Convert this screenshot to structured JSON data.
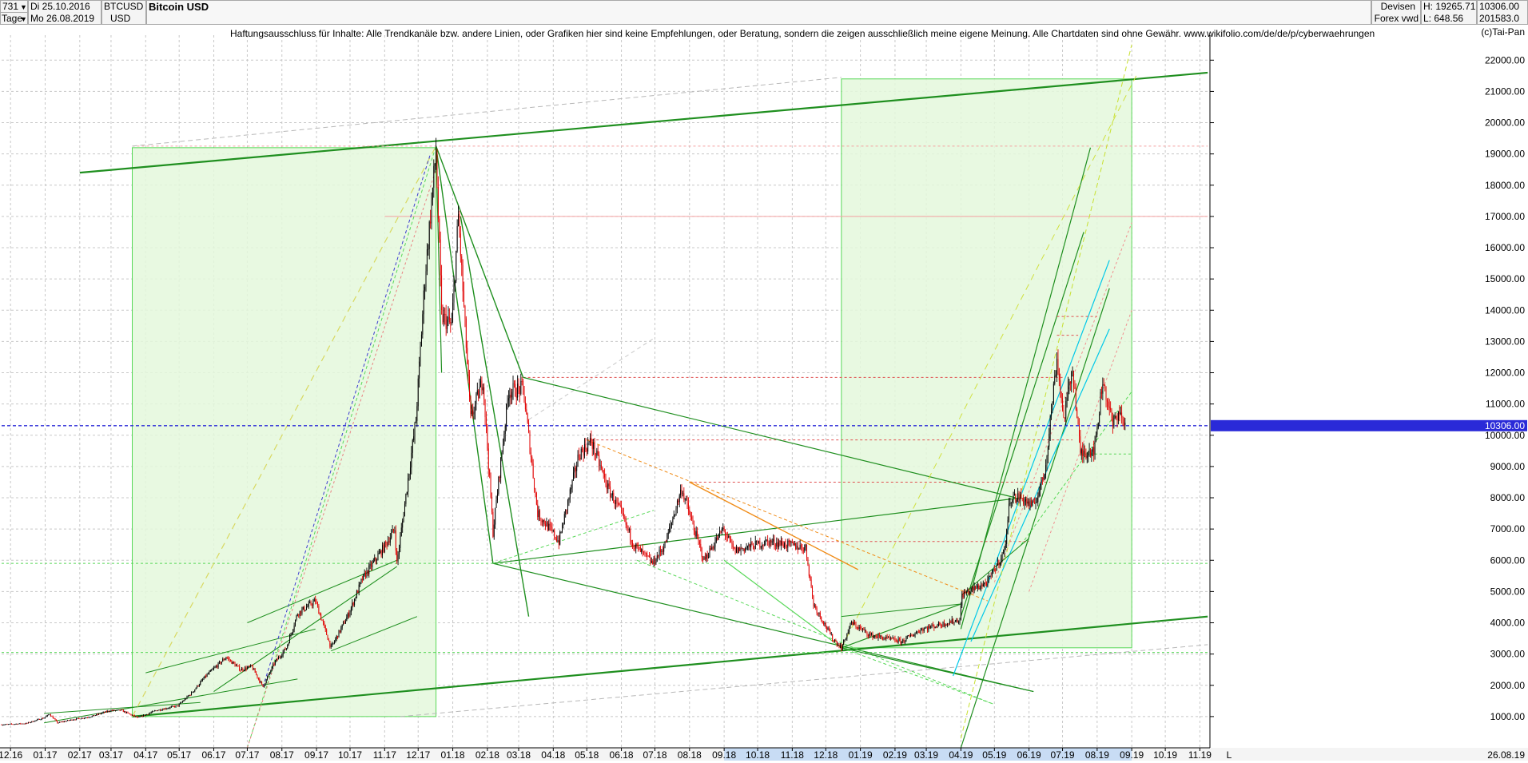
{
  "header": {
    "period_count": "731",
    "date_from": "Di 25.10.2016",
    "date_to": "Mo 26.08.2019",
    "timeframe": "Tage",
    "symbol": "BTCUSD",
    "currency": "USD",
    "title": "Bitcoin USD",
    "market": "Devisen",
    "exchange": "Forex vwd",
    "high_label": "H: 19265.71",
    "low_label": "L: 648.56",
    "last_value": "10306.00",
    "volume_value": "201583.0",
    "disclaimer": "Haftungsausschluss für Inhalte: Alle Trendkanäle bzw. andere Linien, oder Grafiken hier sind keine Empfehlungen, oder Beratung, sondern die zeigen ausschließlich meine eigene Meinung. Alle Chartdaten sind ohne Gewähr.  www.wikifolio.com/de/de/p/cyberwaehrungen",
    "copyright": "(c)Tai-Pan"
  },
  "colors": {
    "background": "#ffffff",
    "grid": "#c8c8c8",
    "bull": "#000000",
    "bear": "#e00000",
    "trend_green": "#1f8f1f",
    "light_green": "#58d858",
    "fill_green": "#e4f8dc",
    "price_line": "#2a2ad8",
    "cyan": "#00c8e8",
    "orange": "#f08c18",
    "yellow_green": "#c8e030"
  },
  "chart_data": {
    "type": "candlestick",
    "title": "Bitcoin USD",
    "symbol": "BTCUSD",
    "xlabel": "",
    "ylabel": "",
    "y_scale": "linear",
    "ylim": [
      0,
      22800
    ],
    "y_ticks": [
      1000,
      2000,
      3000,
      4000,
      5000,
      6000,
      7000,
      8000,
      9000,
      10000,
      11000,
      12000,
      13000,
      14000,
      15000,
      16000,
      17000,
      18000,
      19000,
      20000,
      21000,
      22000
    ],
    "y_tick_labels": [
      "1000.00",
      "2000.00",
      "3000.00",
      "4000.00",
      "5000.00",
      "6000.00",
      "7000.00",
      "8000.00",
      "9000.00",
      "10000.00",
      "11000.00",
      "12000.00",
      "13000.00",
      "14000.00",
      "15000.00",
      "16000.00",
      "17000.00",
      "18000.00",
      "19000.00",
      "20000.00",
      "21000.00",
      "22000.00"
    ],
    "x_start": "2016-11-23",
    "x_end": "2019-11-10",
    "x_ticks": [
      {
        "date": "2016-12-01",
        "label": "12.16"
      },
      {
        "date": "2017-01-01",
        "label": "01.17"
      },
      {
        "date": "2017-02-01",
        "label": "02.17"
      },
      {
        "date": "2017-03-01",
        "label": "03.17"
      },
      {
        "date": "2017-04-01",
        "label": "04.17"
      },
      {
        "date": "2017-05-01",
        "label": "05.17"
      },
      {
        "date": "2017-06-01",
        "label": "06.17"
      },
      {
        "date": "2017-07-01",
        "label": "07.17"
      },
      {
        "date": "2017-08-01",
        "label": "08.17"
      },
      {
        "date": "2017-09-01",
        "label": "09.17"
      },
      {
        "date": "2017-10-01",
        "label": "10.17"
      },
      {
        "date": "2017-11-01",
        "label": "11.17"
      },
      {
        "date": "2017-12-01",
        "label": "12.17"
      },
      {
        "date": "2018-01-01",
        "label": "01.18"
      },
      {
        "date": "2018-02-01",
        "label": "02.18"
      },
      {
        "date": "2018-03-01",
        "label": "03.18"
      },
      {
        "date": "2018-04-01",
        "label": "04.18"
      },
      {
        "date": "2018-05-01",
        "label": "05.18"
      },
      {
        "date": "2018-06-01",
        "label": "06.18"
      },
      {
        "date": "2018-07-01",
        "label": "07.18"
      },
      {
        "date": "2018-08-01",
        "label": "08.18"
      },
      {
        "date": "2018-09-01",
        "label": "09.18"
      },
      {
        "date": "2018-10-01",
        "label": "10.18"
      },
      {
        "date": "2018-11-01",
        "label": "11.18"
      },
      {
        "date": "2018-12-01",
        "label": "12.18"
      },
      {
        "date": "2019-01-01",
        "label": "01.19"
      },
      {
        "date": "2019-02-01",
        "label": "02.19"
      },
      {
        "date": "2019-03-01",
        "label": "03.19"
      },
      {
        "date": "2019-04-01",
        "label": "04.19"
      },
      {
        "date": "2019-05-01",
        "label": "05.19"
      },
      {
        "date": "2019-06-01",
        "label": "06.19"
      },
      {
        "date": "2019-07-01",
        "label": "07.19"
      },
      {
        "date": "2019-08-01",
        "label": "08.19"
      },
      {
        "date": "2019-09-01",
        "label": "09.19"
      },
      {
        "date": "2019-10-01",
        "label": "10.19"
      },
      {
        "date": "2019-11-01",
        "label": "11.19"
      }
    ],
    "right_date_label": "26.08.19",
    "scale_marker": "L",
    "highlighted_x_range": [
      "2018-09-01",
      "2019-09-01"
    ],
    "grid": true,
    "last_price": 10306,
    "last_price_label": "10306.00",
    "close_path": [
      [
        "2016-11-23",
        740
      ],
      [
        "2016-12-15",
        780
      ],
      [
        "2016-12-31",
        960
      ],
      [
        "2017-01-05",
        1080
      ],
      [
        "2017-01-12",
        800
      ],
      [
        "2017-01-25",
        900
      ],
      [
        "2017-02-10",
        990
      ],
      [
        "2017-02-28",
        1190
      ],
      [
        "2017-03-10",
        1200
      ],
      [
        "2017-03-25",
        960
      ],
      [
        "2017-04-10",
        1190
      ],
      [
        "2017-04-30",
        1350
      ],
      [
        "2017-05-12",
        1750
      ],
      [
        "2017-05-25",
        2300
      ],
      [
        "2017-06-12",
        2900
      ],
      [
        "2017-06-25",
        2500
      ],
      [
        "2017-07-05",
        2600
      ],
      [
        "2017-07-15",
        1950
      ],
      [
        "2017-07-25",
        2700
      ],
      [
        "2017-08-05",
        3200
      ],
      [
        "2017-08-15",
        4300
      ],
      [
        "2017-08-31",
        4700
      ],
      [
        "2017-09-14",
        3200
      ],
      [
        "2017-09-30",
        4300
      ],
      [
        "2017-10-12",
        5400
      ],
      [
        "2017-10-31",
        6400
      ],
      [
        "2017-11-10",
        7000
      ],
      [
        "2017-11-12",
        5900
      ],
      [
        "2017-11-29",
        10500
      ],
      [
        "2017-12-07",
        15000
      ],
      [
        "2017-12-17",
        19100
      ],
      [
        "2017-12-22",
        13800
      ],
      [
        "2017-12-31",
        13500
      ],
      [
        "2018-01-06",
        17000
      ],
      [
        "2018-01-17",
        10500
      ],
      [
        "2018-01-28",
        11800
      ],
      [
        "2018-02-06",
        6900
      ],
      [
        "2018-02-20",
        11400
      ],
      [
        "2018-03-05",
        11500
      ],
      [
        "2018-03-18",
        7500
      ],
      [
        "2018-03-31",
        6900
      ],
      [
        "2018-04-06",
        6600
      ],
      [
        "2018-04-24",
        9400
      ],
      [
        "2018-05-05",
        9800
      ],
      [
        "2018-05-20",
        8300
      ],
      [
        "2018-06-01",
        7500
      ],
      [
        "2018-06-12",
        6500
      ],
      [
        "2018-06-29",
        5900
      ],
      [
        "2018-07-10",
        6500
      ],
      [
        "2018-07-25",
        8300
      ],
      [
        "2018-08-05",
        7000
      ],
      [
        "2018-08-14",
        6000
      ],
      [
        "2018-08-31",
        7000
      ],
      [
        "2018-09-10",
        6300
      ],
      [
        "2018-10-10",
        6600
      ],
      [
        "2018-11-13",
        6400
      ],
      [
        "2018-11-20",
        4600
      ],
      [
        "2018-12-07",
        3500
      ],
      [
        "2018-12-15",
        3200
      ],
      [
        "2018-12-24",
        4000
      ],
      [
        "2019-01-10",
        3600
      ],
      [
        "2019-02-07",
        3400
      ],
      [
        "2019-02-25",
        3800
      ],
      [
        "2019-03-31",
        4100
      ],
      [
        "2019-04-02",
        4900
      ],
      [
        "2019-04-25",
        5300
      ],
      [
        "2019-05-10",
        6300
      ],
      [
        "2019-05-15",
        8000
      ],
      [
        "2019-05-25",
        8000
      ],
      [
        "2019-06-05",
        7700
      ],
      [
        "2019-06-15",
        8800
      ],
      [
        "2019-06-26",
        12500
      ],
      [
        "2019-07-02",
        10500
      ],
      [
        "2019-07-10",
        12200
      ],
      [
        "2019-07-17",
        9400
      ],
      [
        "2019-07-30",
        9600
      ],
      [
        "2019-08-06",
        11800
      ],
      [
        "2019-08-15",
        10300
      ],
      [
        "2019-08-20",
        10800
      ],
      [
        "2019-08-26",
        10306
      ]
    ]
  }
}
